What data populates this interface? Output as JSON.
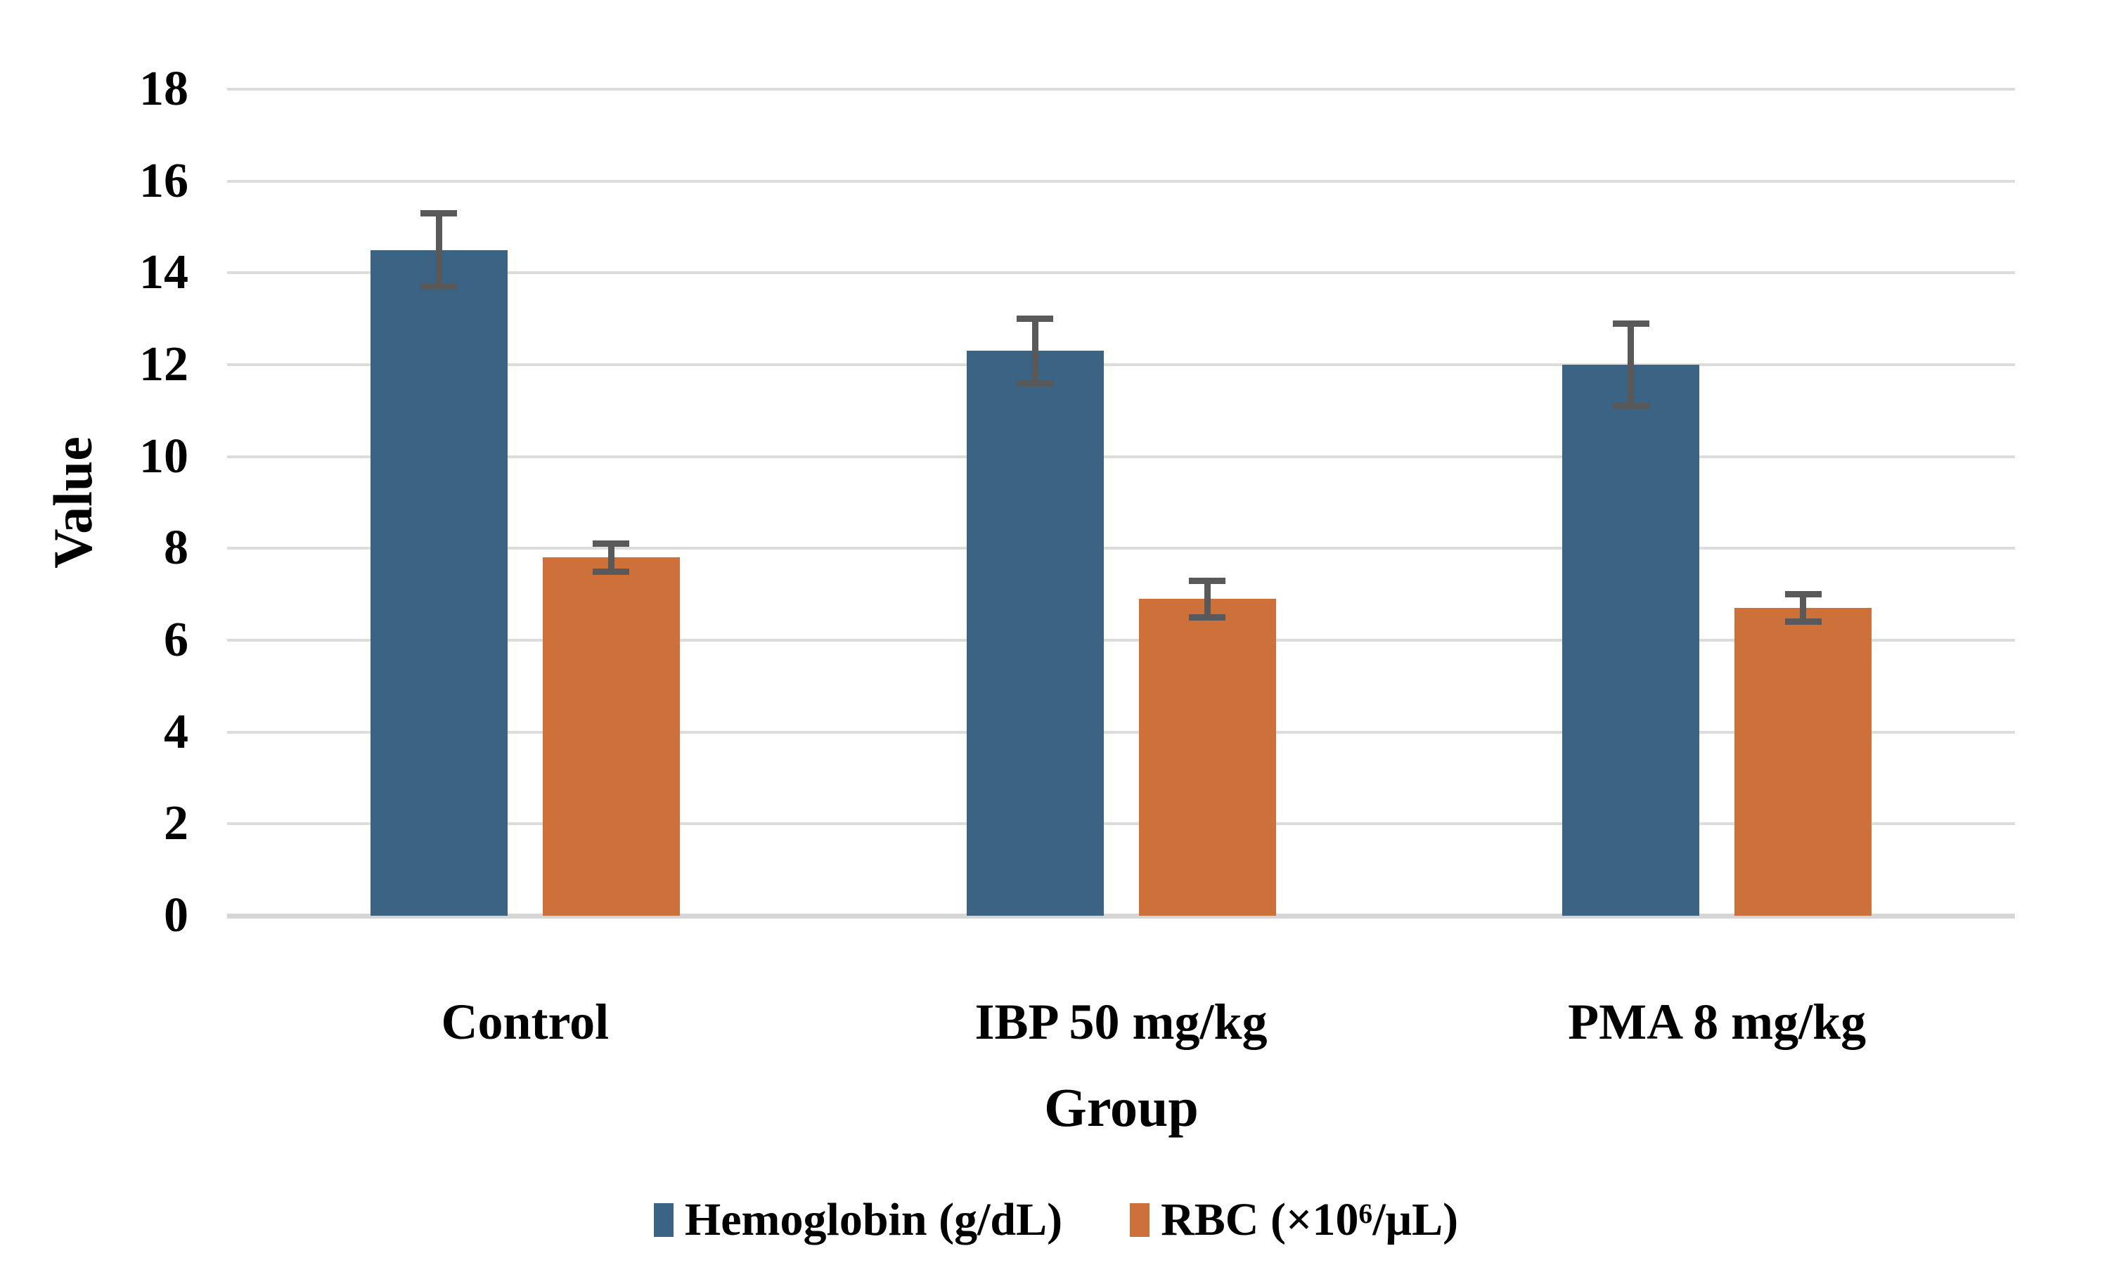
{
  "chart_data": {
    "type": "bar",
    "title": "",
    "xlabel": "Group",
    "ylabel": "Value",
    "categories": [
      "Control",
      "IBP 50 mg/kg",
      "PMA 8 mg/kg"
    ],
    "series": [
      {
        "name": "Hemoglobin (g/dL)",
        "key": "hemoglobin",
        "color": "#3B6383",
        "values": [
          14.5,
          12.3,
          12.0
        ],
        "errors": [
          0.8,
          0.7,
          0.9
        ]
      },
      {
        "name": "RBC (×10⁶/μL)",
        "key": "rbc",
        "color": "#CD7039",
        "values": [
          7.8,
          6.9,
          6.7
        ],
        "errors": [
          0.3,
          0.4,
          0.3
        ]
      }
    ],
    "ylim": [
      0,
      18
    ],
    "yticks": [
      0,
      2,
      4,
      6,
      8,
      10,
      12,
      14,
      16,
      18
    ],
    "grid": true,
    "legend_position": "bottom",
    "error_bars": true
  },
  "style": {
    "gridline_color": "#DCDCDC",
    "axis_line_color": "#D6D6D6",
    "error_bar_color": "#595959",
    "text_color": "#000000",
    "background_color": "#FFFFFF"
  }
}
